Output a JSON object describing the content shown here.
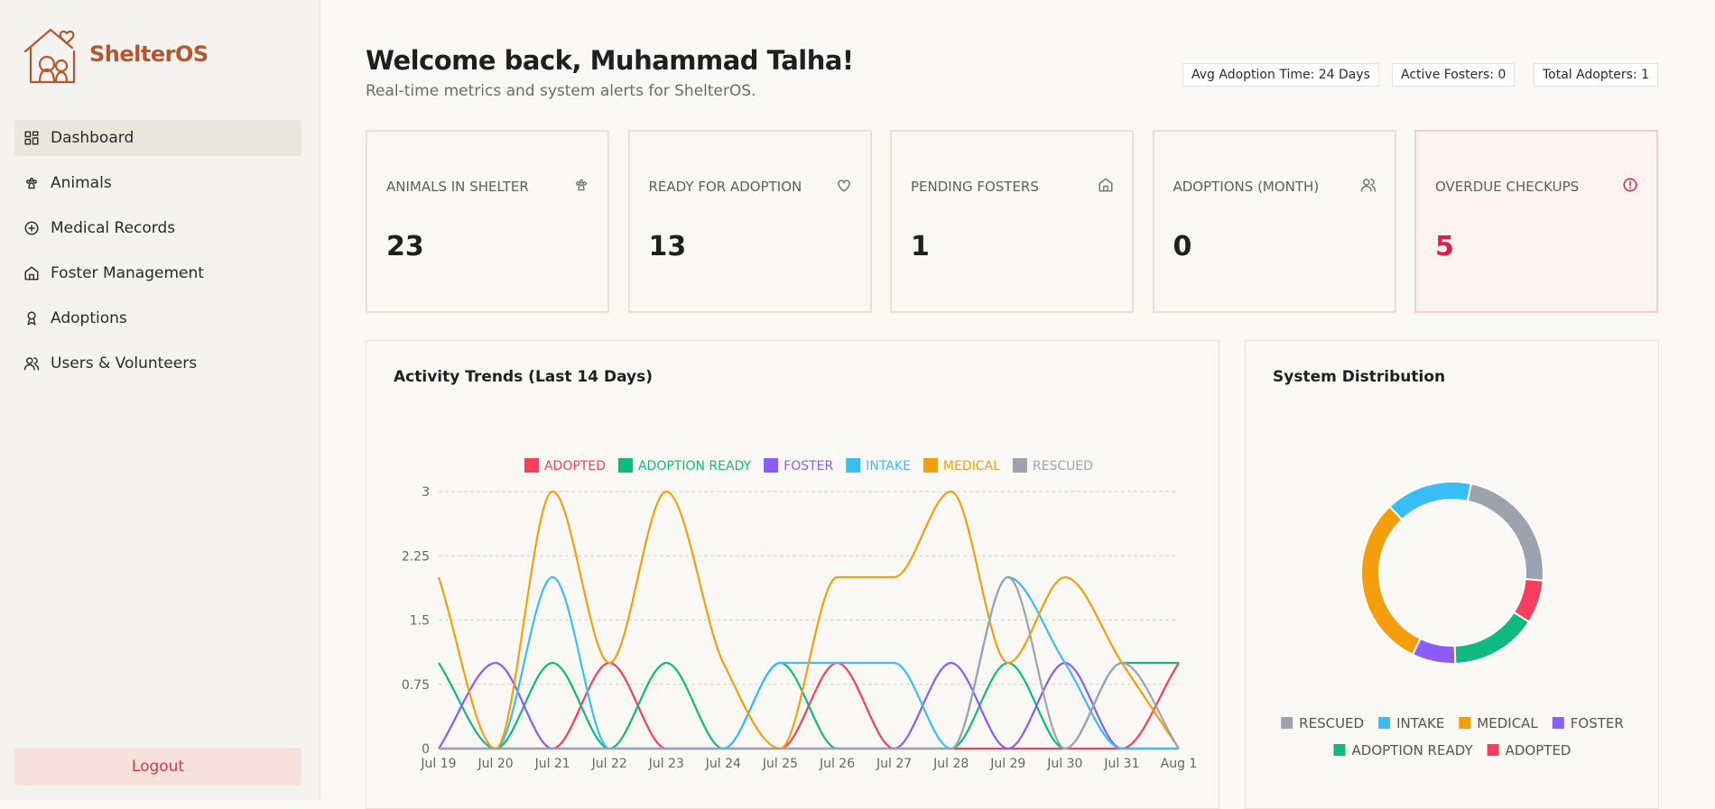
{
  "sidebar": {
    "brand": "ShelterOS",
    "nav": [
      "Dashboard",
      "Animals",
      "Medical Records",
      "Foster Management",
      "Adoptions",
      "Users & Volunteers"
    ],
    "logout": "Logout"
  },
  "header": {
    "title": "Welcome back, Muhammad Talha!",
    "subtitle": "Real-time metrics and system alerts for ShelterOS.",
    "badges": [
      "Avg Adoption Time: 24 Days",
      "Active Fosters: 0",
      "Total Adopters: 1"
    ]
  },
  "stats": [
    {
      "label": "ANIMALS IN SHELTER",
      "value": 23
    },
    {
      "label": "READY FOR ADOPTION",
      "value": 13
    },
    {
      "label": "PENDING FOSTERS",
      "value": 1
    },
    {
      "label": "ADOPTIONS (MONTH)",
      "value": 0
    },
    {
      "label": "OVERDUE CHECKUPS",
      "value": 5
    }
  ],
  "chart_data": [
    {
      "type": "line",
      "title": "Activity Trends (Last 14 Days)",
      "categories": [
        "Jul 19",
        "Jul 20",
        "Jul 21",
        "Jul 22",
        "Jul 23",
        "Jul 24",
        "Jul 25",
        "Jul 26",
        "Jul 27",
        "Jul 28",
        "Jul 29",
        "Jul 30",
        "Jul 31",
        "Aug 1"
      ],
      "ylim": [
        0,
        3
      ],
      "yticks": [
        0,
        0.75,
        1.5,
        2.25,
        3
      ],
      "grid": true,
      "series": [
        {
          "name": "ADOPTED",
          "color": "#f43f5e",
          "values": [
            0,
            0,
            0,
            1,
            0,
            0,
            0,
            1,
            0,
            0,
            0,
            0,
            0,
            1
          ]
        },
        {
          "name": "ADOPTION READY",
          "color": "#10b981",
          "values": [
            1,
            0,
            1,
            0,
            1,
            0,
            1,
            0,
            0,
            0,
            1,
            0,
            1,
            1
          ]
        },
        {
          "name": "FOSTER",
          "color": "#8b5cf6",
          "values": [
            0,
            1,
            0,
            0,
            0,
            0,
            0,
            0,
            0,
            1,
            0,
            1,
            0,
            0
          ]
        },
        {
          "name": "INTAKE",
          "color": "#38bdf8",
          "values": [
            0,
            0,
            2,
            0,
            0,
            0,
            1,
            1,
            1,
            0,
            2,
            1,
            0,
            0
          ]
        },
        {
          "name": "MEDICAL",
          "color": "#f59e0b",
          "values": [
            2,
            0,
            3,
            1,
            3,
            1,
            0,
            2,
            2,
            3,
            1,
            2,
            1,
            0
          ]
        },
        {
          "name": "RESCUED",
          "color": "#9ca3af",
          "values": [
            0,
            0,
            0,
            0,
            0,
            0,
            0,
            0,
            0,
            0,
            2,
            0,
            1,
            0
          ]
        }
      ]
    },
    {
      "type": "donut",
      "title": "System Distribution",
      "categories": [
        "RESCUED",
        "INTAKE",
        "MEDICAL",
        "FOSTER",
        "ADOPTION READY",
        "ADOPTED"
      ],
      "values": [
        3,
        2,
        4,
        1,
        2,
        1
      ],
      "colors": [
        "#9ca3af",
        "#38bdf8",
        "#f59e0b",
        "#8b5cf6",
        "#10b981",
        "#f43f5e"
      ]
    }
  ]
}
